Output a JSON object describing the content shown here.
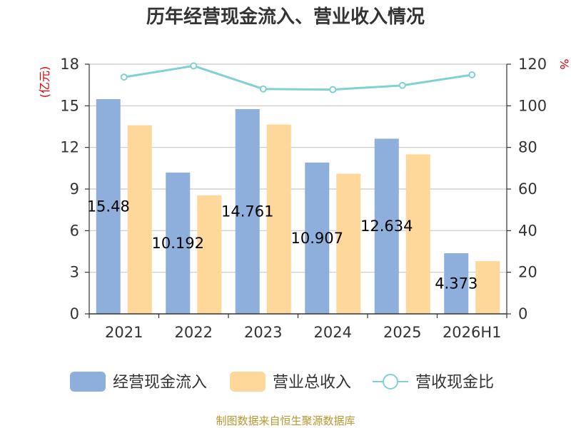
{
  "chart_data": {
    "type": "bar",
    "title": "历年经营现金流入、营业收入情况",
    "categories": [
      "2021",
      "2022",
      "2023",
      "2024",
      "2025",
      "2026H1"
    ],
    "y_left": {
      "unit": "(亿元)",
      "lim": [
        0,
        18
      ],
      "ticks": [
        "0",
        "3",
        "6",
        "9",
        "12",
        "15",
        "18"
      ]
    },
    "y_right": {
      "unit": "%",
      "lim": [
        0,
        120
      ],
      "ticks": [
        "0",
        "20",
        "40",
        "60",
        "80",
        "100",
        "120"
      ]
    },
    "series": [
      {
        "name": "经营现金流入",
        "type": "bar",
        "axis": "left",
        "color": "#8eaedb",
        "values": [
          15.48,
          10.19,
          14.76,
          10.91,
          12.63,
          4.37
        ],
        "labels": [
          "15.48",
          "10.192",
          "14.761",
          "10.907",
          "12.634",
          "4.373"
        ]
      },
      {
        "name": "营业总收入",
        "type": "bar",
        "axis": "left",
        "color": "#fdd89a",
        "values": [
          13.6,
          8.55,
          13.65,
          10.1,
          11.5,
          3.8
        ]
      },
      {
        "name": "营收现金比",
        "type": "line",
        "axis": "right",
        "color": "#7fd1d3",
        "values": [
          113.8,
          119.2,
          108.1,
          107.8,
          109.8,
          114.9
        ]
      }
    ],
    "grid": true,
    "legend_position": "bottom"
  },
  "source": "制图数据来自恒生聚源数据库"
}
